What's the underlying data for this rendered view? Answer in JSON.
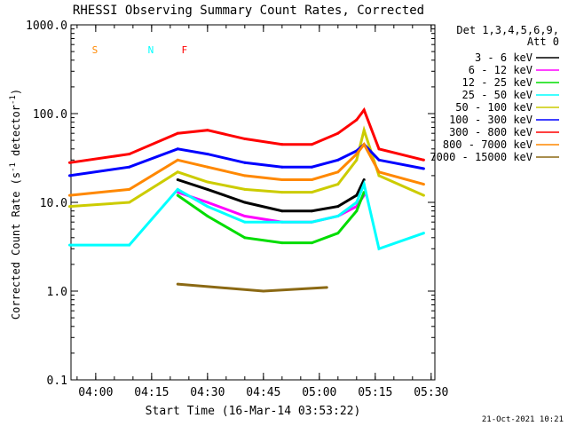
{
  "chart_data": {
    "type": "line",
    "title": "RHESSI Observing Summary Count Rates, Corrected",
    "xlabel": "Start Time (16-Mar-14 03:53:22)",
    "ylabel_pre": "Corrected Count Rate (s",
    "ylabel_exp1": "-1",
    "ylabel_mid": " detector",
    "ylabel_exp2": "-1",
    "ylabel_post": ")",
    "y_scale": "log",
    "ylim": [
      0.1,
      1000
    ],
    "xlim": [
      "03:53:22",
      "05:31:00"
    ],
    "x_ticks": [
      "04:00",
      "04:15",
      "04:30",
      "04:45",
      "05:00",
      "05:15",
      "05:30"
    ],
    "y_ticks": [
      "0.1",
      "1.0",
      "10.0",
      "100.0",
      "1000.0"
    ],
    "legend_header": [
      "Det 1,3,4,5,6,9,",
      "Att 0"
    ],
    "legend_placement": "right",
    "series": [
      {
        "name": "3 - 6 keV",
        "color": "#000000",
        "x": [
          "04:09",
          "04:22",
          "04:30",
          "04:40",
          "04:50",
          "04:58",
          "05:05",
          "05:10",
          "05:12"
        ],
        "values": [
          null,
          18,
          14,
          10,
          8,
          8,
          9,
          12,
          18
        ]
      },
      {
        "name": "6 - 12 keV",
        "color": "#ff00ff",
        "x": [
          "04:09",
          "04:22",
          "04:30",
          "04:40",
          "04:50",
          "04:58",
          "05:05",
          "05:10",
          "05:12"
        ],
        "values": [
          null,
          13,
          10,
          7,
          6,
          6,
          7,
          9,
          12
        ]
      },
      {
        "name": "12 - 25 keV",
        "color": "#00dd00",
        "x": [
          "04:09",
          "04:22",
          "04:30",
          "04:40",
          "04:50",
          "04:58",
          "05:05",
          "05:10",
          "05:12"
        ],
        "values": [
          null,
          12,
          7,
          4,
          3.5,
          3.5,
          4.5,
          8,
          13
        ]
      },
      {
        "name": "25 - 50 keV",
        "color": "#00ffff",
        "x": [
          "03:53",
          "04:09",
          "04:22",
          "04:30",
          "04:40",
          "04:50",
          "04:58",
          "05:05",
          "05:10",
          "05:12",
          "05:16",
          "05:28"
        ],
        "values": [
          3.3,
          3.3,
          14,
          9,
          6,
          6,
          6,
          7,
          10,
          16,
          3,
          4.5
        ]
      },
      {
        "name": "50 - 100 keV",
        "color": "#cccc00",
        "x": [
          "03:53",
          "04:09",
          "04:22",
          "04:30",
          "04:40",
          "04:50",
          "04:58",
          "05:05",
          "05:10",
          "05:12",
          "05:16",
          "05:28"
        ],
        "values": [
          9,
          10,
          22,
          17,
          14,
          13,
          13,
          16,
          30,
          65,
          20,
          12
        ]
      },
      {
        "name": "100 - 300 keV",
        "color": "#0000ff",
        "x": [
          "03:53",
          "04:09",
          "04:22",
          "04:30",
          "04:40",
          "04:50",
          "04:58",
          "05:05",
          "05:10",
          "05:12",
          "05:16",
          "05:28"
        ],
        "values": [
          20,
          25,
          40,
          35,
          28,
          25,
          25,
          30,
          38,
          45,
          30,
          24
        ]
      },
      {
        "name": "300 - 800 keV",
        "color": "#ff0000",
        "x": [
          "03:53",
          "04:09",
          "04:22",
          "04:30",
          "04:40",
          "04:50",
          "04:58",
          "05:05",
          "05:10",
          "05:12",
          "05:16",
          "05:28"
        ],
        "values": [
          28,
          35,
          60,
          65,
          52,
          45,
          45,
          60,
          85,
          110,
          40,
          30
        ]
      },
      {
        "name": "800 - 7000 keV",
        "color": "#ff8800",
        "x": [
          "03:53",
          "04:09",
          "04:22",
          "04:30",
          "04:40",
          "04:50",
          "04:58",
          "05:05",
          "05:10",
          "05:12",
          "05:16",
          "05:28"
        ],
        "values": [
          12,
          14,
          30,
          25,
          20,
          18,
          18,
          22,
          35,
          45,
          22,
          16
        ]
      },
      {
        "name": "7000 - 15000 keV",
        "color": "#8b6914",
        "x": [
          "04:22",
          "04:45",
          "05:02"
        ],
        "values": [
          1.2,
          1.0,
          1.1
        ]
      }
    ],
    "annotations": [
      {
        "text": "S",
        "color": "#ff8800",
        "x": "03:59"
      },
      {
        "text": "N",
        "color": "#00ffff",
        "x": "04:14"
      },
      {
        "text": "F",
        "color": "#ff0000",
        "x": "04:23"
      }
    ],
    "timestamp": "21-Oct-2021 10:21"
  }
}
